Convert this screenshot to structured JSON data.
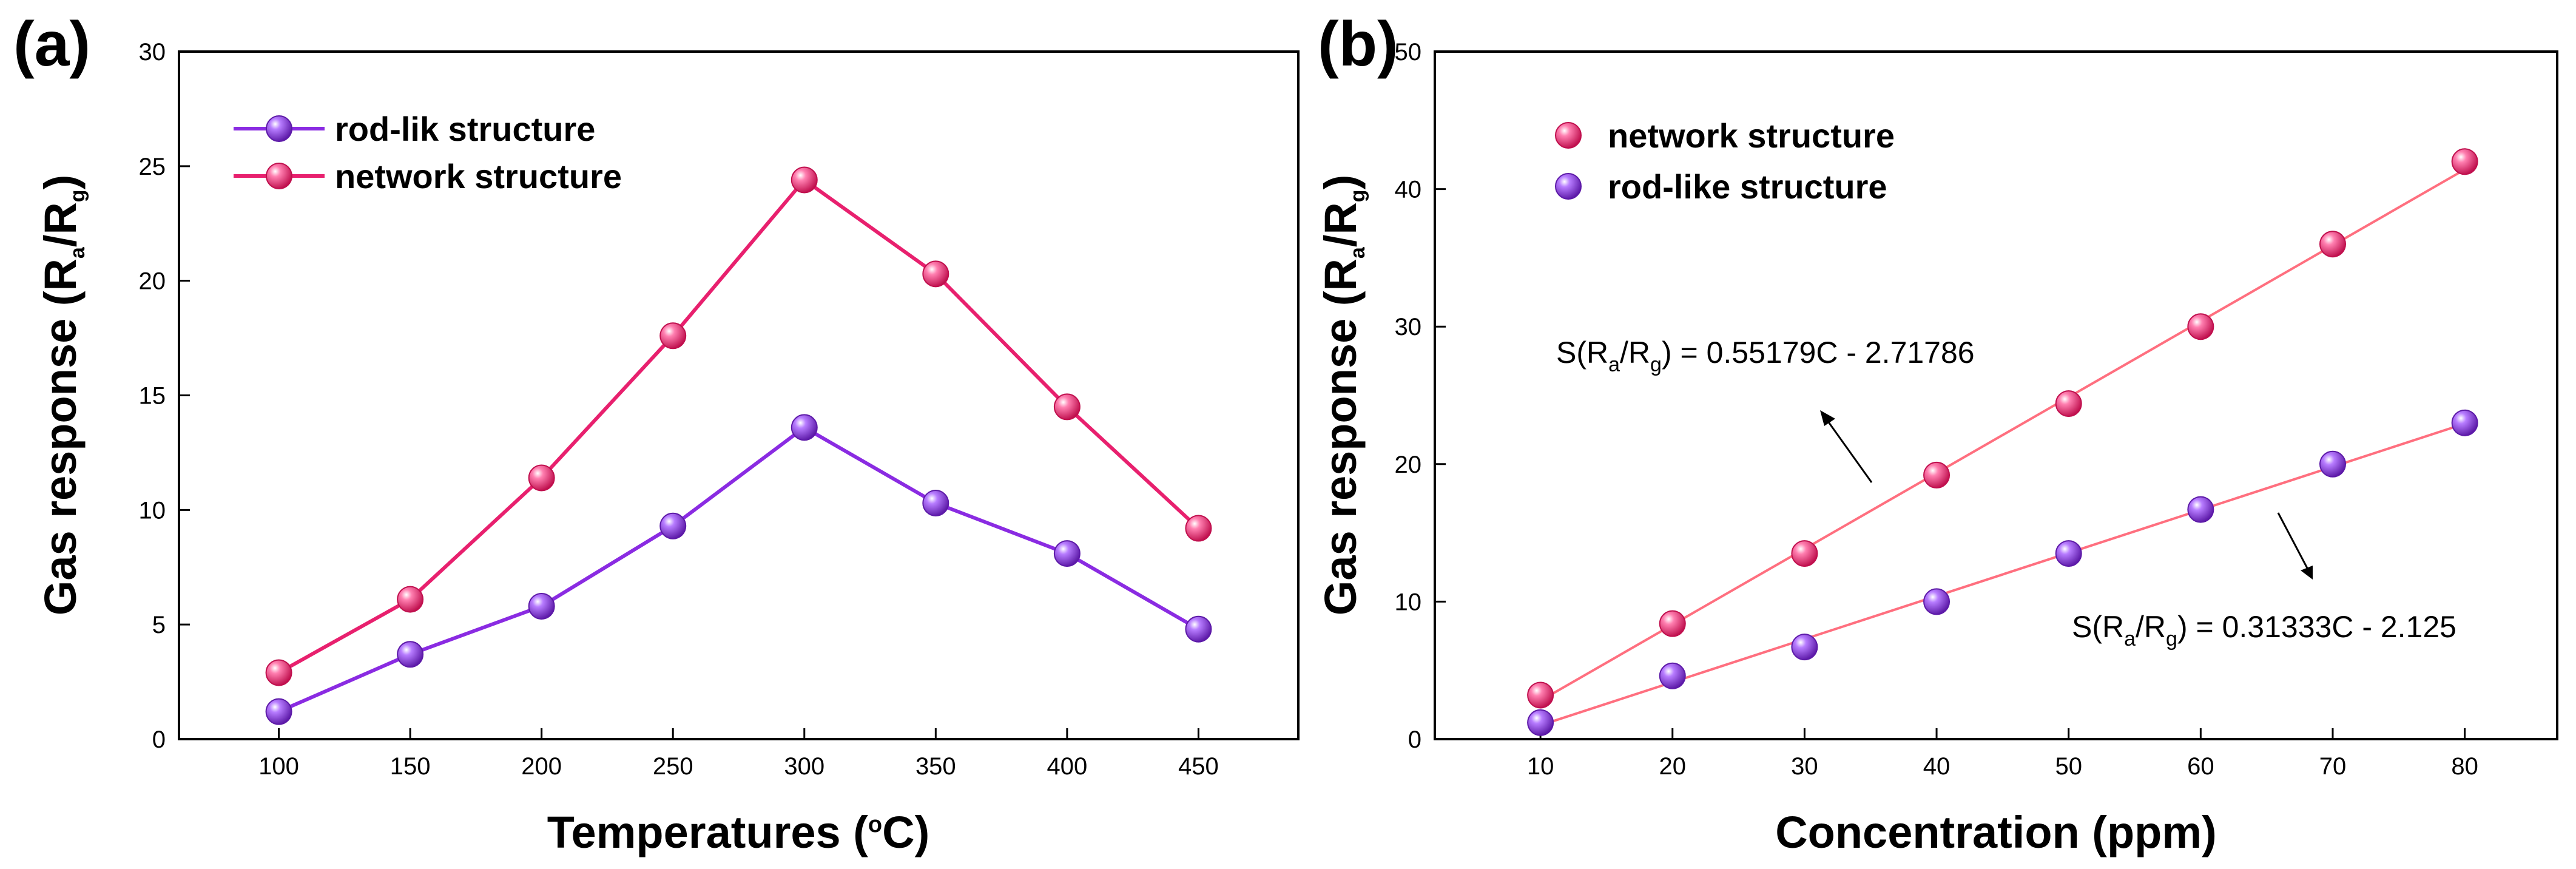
{
  "chart_data": [
    {
      "panel": "(a)",
      "type": "line",
      "xlabel": "Temperatures (",
      "xlabel_sup": "o",
      "xlabel_end": "C)",
      "ylabel": "Gas response (R",
      "ylabel_sub_a": "a",
      "ylabel_mid": "/R",
      "ylabel_sub_g": "g",
      "ylabel_end": ")",
      "xlim": [
        62,
        488
      ],
      "ylim": [
        0,
        30
      ],
      "xticks": [
        100,
        150,
        200,
        250,
        300,
        350,
        400,
        450
      ],
      "yticks": [
        0,
        5,
        10,
        15,
        20,
        25,
        30
      ],
      "legend_position": "top-left",
      "series": [
        {
          "name": "rod-lik structure",
          "color": "#8a2be2",
          "x": [
            100,
            150,
            200,
            250,
            300,
            350,
            400,
            450
          ],
          "y": [
            1.2,
            3.7,
            5.8,
            9.3,
            13.6,
            10.3,
            8.1,
            4.8
          ]
        },
        {
          "name": "network structure",
          "color": "#e8206e",
          "x": [
            100,
            150,
            200,
            250,
            300,
            350,
            400,
            450
          ],
          "y": [
            2.9,
            6.1,
            11.4,
            17.6,
            24.4,
            20.3,
            14.5,
            9.2
          ]
        }
      ]
    },
    {
      "panel": "(b)",
      "type": "scatter",
      "xlabel": "Concentration (ppm)",
      "ylabel": "Gas response (R",
      "ylabel_sub_a": "a",
      "ylabel_mid": "/R",
      "ylabel_sub_g": "g",
      "ylabel_end": ")",
      "xlim": [
        2,
        87
      ],
      "ylim": [
        0,
        50
      ],
      "xticks": [
        10,
        20,
        30,
        40,
        50,
        60,
        70,
        80
      ],
      "yticks": [
        0,
        10,
        20,
        30,
        40,
        50
      ],
      "legend_position": "top-left",
      "series": [
        {
          "name": "network structure",
          "color": "#e8206e",
          "x": [
            10,
            20,
            30,
            40,
            50,
            60,
            70,
            80
          ],
          "y": [
            3.2,
            8.4,
            13.5,
            19.2,
            24.4,
            30.0,
            36.0,
            42.0
          ],
          "fit": {
            "slope": 0.55179,
            "intercept": -2.71786
          }
        },
        {
          "name": "rod-like structure",
          "color": "#8a2be2",
          "x": [
            10,
            20,
            30,
            40,
            50,
            60,
            70,
            80
          ],
          "y": [
            1.2,
            4.6,
            6.7,
            10.0,
            13.5,
            16.7,
            20.0,
            23.0
          ],
          "fit": {
            "slope": 0.31333,
            "intercept": -2.125
          }
        }
      ],
      "annotations": [
        {
          "pre": "S(R",
          "sub1": "a",
          "mid": "/R",
          "sub2": "g",
          "post": ") = 0.55179C - 2.71786",
          "target_series": "network structure"
        },
        {
          "pre": "S(R",
          "sub1": "a",
          "mid": "/R",
          "sub2": "g",
          "post": ") = 0.31333C - 2.125",
          "target_series": "rod-like structure"
        }
      ]
    }
  ]
}
